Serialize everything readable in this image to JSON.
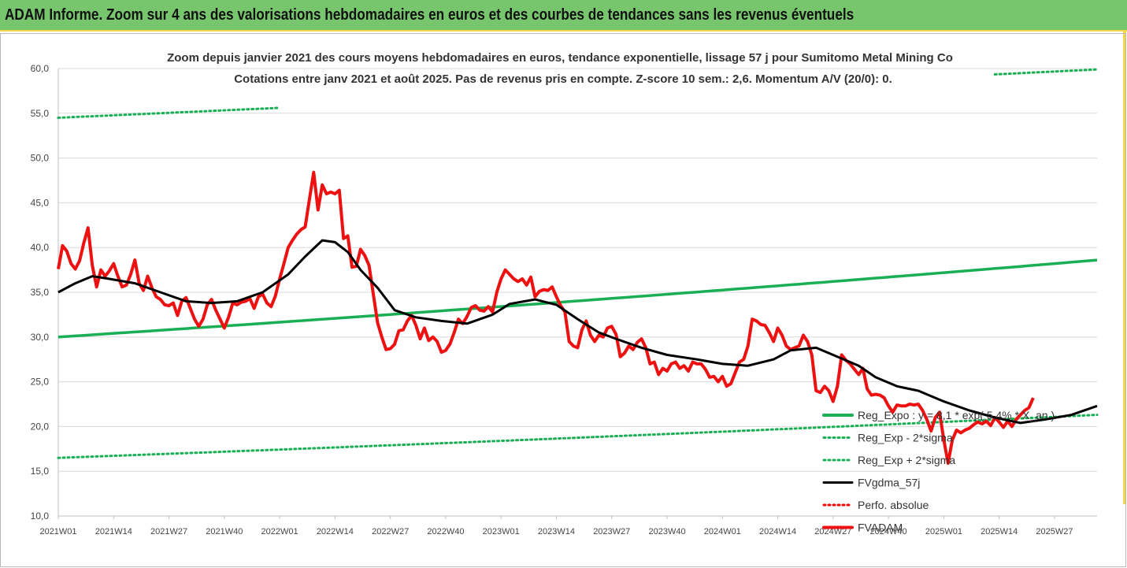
{
  "header": {
    "title": "ADAM Informe. Zoom sur 4 ans des valorisations hebdomadaires en euros et des courbes de tendances sans les revenus éventuels"
  },
  "colors": {
    "header_bg": "#77c66e",
    "accent": "#f4d64a",
    "reg_expo": "#1aaf54",
    "fvgdma": "#000000",
    "perfo": "#ff0000",
    "fvadam": "#ee1111"
  },
  "chart_data": {
    "type": "line",
    "title": "Zoom depuis janvier 2021 des cours moyens hebdomadaires en euros, tendance exponentielle, lissage 57 j pour Sumitomo Metal Mining Co",
    "subtitle": "Cotations entre janv 2021 et août 2025.  Pas de revenus pris en compte. Z-score 10 sem.: 2,6. Momentum A/V (20/0): 0.",
    "ylim": [
      10,
      60
    ],
    "y_ticks": [
      "10,0",
      "15,0",
      "20,0",
      "25,0",
      "30,0",
      "35,0",
      "40,0",
      "45,0",
      "50,0",
      "55,0",
      "60,0"
    ],
    "x_ticks": [
      "2021W01",
      "2021W14",
      "2021W27",
      "2021W40",
      "2022W01",
      "2022W14",
      "2022W27",
      "2022W40",
      "2023W01",
      "2023W14",
      "2023W27",
      "2023W40",
      "2024W01",
      "2024W14",
      "2024W27",
      "2024W40",
      "2025W01",
      "2025W14",
      "2025W27"
    ],
    "x_tick_week_index": [
      0,
      13,
      26,
      39,
      52,
      65,
      78,
      91,
      104,
      117,
      130,
      143,
      156,
      169,
      182,
      195,
      208,
      221,
      234
    ],
    "week_count": 244,
    "legend_position": "right",
    "series": [
      {
        "name": "Reg_Expo : y = 8,1 * exp( 5,4% *  X_an )",
        "style": "solid-green",
        "start": 30.0,
        "end": 38.6
      },
      {
        "name": "Reg_Exp - 2*sigma",
        "style": "dotted-green",
        "start": 16.5,
        "end": 21.3
      },
      {
        "name": "Reg_Exp + 2*sigma",
        "style": "dotted-green",
        "start": 54.5,
        "end": 59.9
      },
      {
        "name": "FVgdma_57j",
        "style": "solid-black",
        "points": [
          [
            0,
            35.0
          ],
          [
            4,
            36.0
          ],
          [
            8,
            36.8
          ],
          [
            12,
            36.5
          ],
          [
            18,
            36.0
          ],
          [
            24,
            35.0
          ],
          [
            30,
            34.0
          ],
          [
            36,
            33.8
          ],
          [
            42,
            34.0
          ],
          [
            48,
            35.0
          ],
          [
            54,
            37.0
          ],
          [
            58,
            39.0
          ],
          [
            62,
            40.8
          ],
          [
            65,
            40.6
          ],
          [
            68,
            39.5
          ],
          [
            71,
            37.5
          ],
          [
            75,
            35.5
          ],
          [
            79,
            33.0
          ],
          [
            84,
            32.2
          ],
          [
            90,
            31.8
          ],
          [
            96,
            31.5
          ],
          [
            102,
            32.5
          ],
          [
            106,
            33.7
          ],
          [
            112,
            34.2
          ],
          [
            117,
            33.6
          ],
          [
            122,
            32.0
          ],
          [
            127,
            30.5
          ],
          [
            131,
            29.8
          ],
          [
            137,
            28.8
          ],
          [
            143,
            28.0
          ],
          [
            150,
            27.5
          ],
          [
            156,
            27.0
          ],
          [
            162,
            26.8
          ],
          [
            168,
            27.5
          ],
          [
            172,
            28.5
          ],
          [
            178,
            28.8
          ],
          [
            182,
            28.0
          ],
          [
            188,
            26.8
          ],
          [
            192,
            25.5
          ],
          [
            197,
            24.5
          ],
          [
            202,
            24.0
          ],
          [
            208,
            22.8
          ],
          [
            214,
            21.8
          ],
          [
            220,
            21.0
          ],
          [
            226,
            20.4
          ],
          [
            232,
            20.8
          ],
          [
            238,
            21.3
          ],
          [
            244,
            22.3
          ]
        ]
      },
      {
        "name": "Perfo. absolue",
        "style": "dotted-red",
        "points": []
      },
      {
        "name": "FVADAM",
        "style": "solid-red",
        "points": [
          [
            0,
            37.6
          ],
          [
            1,
            40.2
          ],
          [
            2,
            39.6
          ],
          [
            3,
            38.2
          ],
          [
            4,
            37.6
          ],
          [
            5,
            38.5
          ],
          [
            6,
            40.5
          ],
          [
            7,
            42.2
          ],
          [
            8,
            38.0
          ],
          [
            9,
            35.6
          ],
          [
            10,
            37.5
          ],
          [
            11,
            36.8
          ],
          [
            12,
            37.4
          ],
          [
            13,
            38.2
          ],
          [
            14,
            36.8
          ],
          [
            15,
            35.6
          ],
          [
            16,
            35.8
          ],
          [
            17,
            37.0
          ],
          [
            18,
            38.6
          ],
          [
            19,
            36.0
          ],
          [
            20,
            35.2
          ],
          [
            21,
            36.8
          ],
          [
            22,
            35.5
          ],
          [
            23,
            34.5
          ],
          [
            24,
            34.2
          ],
          [
            25,
            33.6
          ],
          [
            26,
            33.5
          ],
          [
            27,
            33.8
          ],
          [
            28,
            32.4
          ],
          [
            29,
            34.0
          ],
          [
            30,
            34.4
          ],
          [
            31,
            33.2
          ],
          [
            32,
            32.0
          ],
          [
            33,
            31.2
          ],
          [
            34,
            32.0
          ],
          [
            35,
            33.6
          ],
          [
            36,
            34.2
          ],
          [
            37,
            33.0
          ],
          [
            38,
            32.0
          ],
          [
            39,
            31.0
          ],
          [
            40,
            32.2
          ],
          [
            41,
            33.8
          ],
          [
            42,
            33.6
          ],
          [
            43,
            33.9
          ],
          [
            44,
            34.0
          ],
          [
            45,
            34.3
          ],
          [
            46,
            33.2
          ],
          [
            47,
            34.5
          ],
          [
            48,
            34.8
          ],
          [
            49,
            33.8
          ],
          [
            50,
            33.4
          ],
          [
            51,
            34.6
          ],
          [
            52,
            36.5
          ],
          [
            53,
            38.2
          ],
          [
            54,
            40.0
          ],
          [
            55,
            40.8
          ],
          [
            56,
            41.5
          ],
          [
            57,
            42.0
          ],
          [
            58,
            42.3
          ],
          [
            59,
            45.4
          ],
          [
            60,
            48.4
          ],
          [
            61,
            44.2
          ],
          [
            62,
            47.0
          ],
          [
            63,
            46.0
          ],
          [
            64,
            46.2
          ],
          [
            65,
            46.0
          ],
          [
            66,
            46.4
          ],
          [
            67,
            41.0
          ],
          [
            68,
            41.3
          ],
          [
            69,
            37.8
          ],
          [
            70,
            37.9
          ],
          [
            71,
            39.8
          ],
          [
            72,
            39.1
          ],
          [
            73,
            38.0
          ],
          [
            74,
            34.8
          ],
          [
            75,
            31.6
          ],
          [
            76,
            30.0
          ],
          [
            77,
            28.6
          ],
          [
            78,
            28.7
          ],
          [
            79,
            29.2
          ],
          [
            80,
            30.7
          ],
          [
            81,
            30.8
          ],
          [
            82,
            31.8
          ],
          [
            83,
            32.4
          ],
          [
            84,
            31.3
          ],
          [
            85,
            29.8
          ],
          [
            86,
            31.0
          ],
          [
            87,
            29.6
          ],
          [
            88,
            30.0
          ],
          [
            89,
            29.5
          ],
          [
            90,
            28.3
          ],
          [
            91,
            28.5
          ],
          [
            92,
            29.2
          ],
          [
            93,
            30.5
          ],
          [
            94,
            32.0
          ],
          [
            95,
            31.5
          ],
          [
            96,
            32.3
          ],
          [
            97,
            33.3
          ],
          [
            98,
            33.5
          ],
          [
            99,
            33.0
          ],
          [
            100,
            32.9
          ],
          [
            101,
            33.4
          ],
          [
            102,
            32.8
          ],
          [
            103,
            35.0
          ],
          [
            104,
            36.5
          ],
          [
            105,
            37.5
          ],
          [
            106,
            37.0
          ],
          [
            107,
            36.5
          ],
          [
            108,
            36.2
          ],
          [
            109,
            36.5
          ],
          [
            110,
            35.8
          ],
          [
            111,
            36.7
          ],
          [
            112,
            34.5
          ],
          [
            113,
            35.1
          ],
          [
            114,
            35.3
          ],
          [
            115,
            35.2
          ],
          [
            116,
            35.6
          ],
          [
            117,
            34.5
          ],
          [
            118,
            33.5
          ],
          [
            119,
            32.8
          ],
          [
            120,
            29.5
          ],
          [
            121,
            29.0
          ],
          [
            122,
            28.8
          ],
          [
            123,
            30.8
          ],
          [
            124,
            31.8
          ],
          [
            125,
            30.2
          ],
          [
            126,
            29.5
          ],
          [
            127,
            30.2
          ],
          [
            128,
            30.0
          ],
          [
            129,
            31.0
          ],
          [
            130,
            31.2
          ],
          [
            131,
            30.3
          ],
          [
            132,
            27.8
          ],
          [
            133,
            28.2
          ],
          [
            134,
            29.0
          ],
          [
            135,
            28.6
          ],
          [
            136,
            29.4
          ],
          [
            137,
            29.8
          ],
          [
            138,
            28.8
          ],
          [
            139,
            27.0
          ],
          [
            140,
            27.2
          ],
          [
            141,
            25.8
          ],
          [
            142,
            26.5
          ],
          [
            143,
            26.2
          ],
          [
            144,
            27.0
          ],
          [
            145,
            27.2
          ],
          [
            146,
            26.5
          ],
          [
            147,
            26.8
          ],
          [
            148,
            26.2
          ],
          [
            149,
            27.2
          ],
          [
            150,
            27.0
          ],
          [
            151,
            27.0
          ],
          [
            152,
            26.4
          ],
          [
            153,
            25.5
          ],
          [
            154,
            25.6
          ],
          [
            155,
            25.0
          ],
          [
            156,
            25.6
          ],
          [
            157,
            24.5
          ],
          [
            158,
            24.8
          ],
          [
            159,
            26.0
          ],
          [
            160,
            27.2
          ],
          [
            161,
            27.5
          ],
          [
            162,
            29.0
          ],
          [
            163,
            32.0
          ],
          [
            164,
            31.8
          ],
          [
            165,
            31.4
          ],
          [
            166,
            31.3
          ],
          [
            167,
            30.5
          ],
          [
            168,
            29.5
          ],
          [
            169,
            31.0
          ],
          [
            170,
            30.2
          ],
          [
            171,
            29.0
          ],
          [
            172,
            28.6
          ],
          [
            173,
            28.8
          ],
          [
            174,
            29.0
          ],
          [
            175,
            30.2
          ],
          [
            176,
            29.5
          ],
          [
            177,
            28.0
          ],
          [
            178,
            24.0
          ],
          [
            179,
            23.8
          ],
          [
            180,
            24.5
          ],
          [
            181,
            24.0
          ],
          [
            182,
            22.8
          ],
          [
            183,
            24.5
          ],
          [
            184,
            28.0
          ],
          [
            185,
            27.4
          ],
          [
            186,
            27.0
          ],
          [
            187,
            26.4
          ],
          [
            188,
            25.8
          ],
          [
            189,
            26.5
          ],
          [
            190,
            24.2
          ],
          [
            191,
            23.5
          ],
          [
            192,
            23.6
          ],
          [
            193,
            23.5
          ],
          [
            194,
            23.2
          ],
          [
            195,
            22.3
          ],
          [
            196,
            21.6
          ],
          [
            197,
            22.4
          ],
          [
            198,
            22.3
          ],
          [
            199,
            22.3
          ],
          [
            200,
            22.5
          ],
          [
            201,
            22.4
          ],
          [
            202,
            22.5
          ],
          [
            203,
            21.8
          ],
          [
            204,
            20.8
          ],
          [
            205,
            19.5
          ],
          [
            206,
            21.0
          ],
          [
            207,
            21.6
          ],
          [
            208,
            18.5
          ],
          [
            209,
            15.9
          ],
          [
            210,
            18.5
          ],
          [
            211,
            19.6
          ],
          [
            212,
            19.3
          ],
          [
            213,
            19.6
          ],
          [
            214,
            19.8
          ],
          [
            215,
            20.2
          ],
          [
            216,
            20.5
          ],
          [
            217,
            20.3
          ],
          [
            218,
            20.6
          ],
          [
            219,
            20.1
          ],
          [
            220,
            21.0
          ],
          [
            221,
            20.5
          ],
          [
            222,
            19.9
          ],
          [
            223,
            20.6
          ],
          [
            224,
            20.0
          ],
          [
            225,
            20.8
          ],
          [
            226,
            21.3
          ],
          [
            227,
            21.8
          ],
          [
            228,
            22.1
          ],
          [
            229,
            23.2
          ]
        ]
      }
    ]
  }
}
